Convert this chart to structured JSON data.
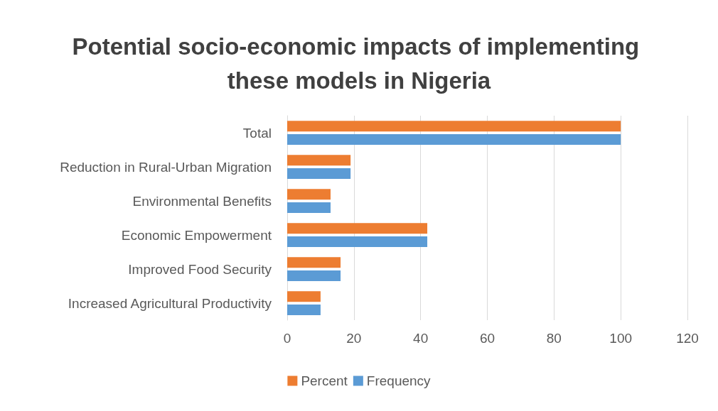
{
  "chart_data": {
    "type": "bar",
    "orientation": "horizontal",
    "title": "Potential socio-economic impacts of implementing these models in Nigeria",
    "categories": [
      "Total",
      "Reduction in Rural-Urban Migration",
      "Environmental Benefits",
      "Economic Empowerment",
      "Improved Food Security",
      "Increased Agricultural Productivity"
    ],
    "series": [
      {
        "name": "Percent",
        "color": "#ed7d31",
        "values": [
          100,
          19,
          13,
          42,
          16,
          10
        ]
      },
      {
        "name": "Frequency",
        "color": "#5b9bd5",
        "values": [
          100,
          19,
          13,
          42,
          16,
          10
        ]
      }
    ],
    "xlim": [
      0,
      120
    ],
    "xticks": [
      0,
      20,
      40,
      60,
      80,
      100,
      120
    ],
    "grid": "x",
    "legend": "bottom"
  }
}
